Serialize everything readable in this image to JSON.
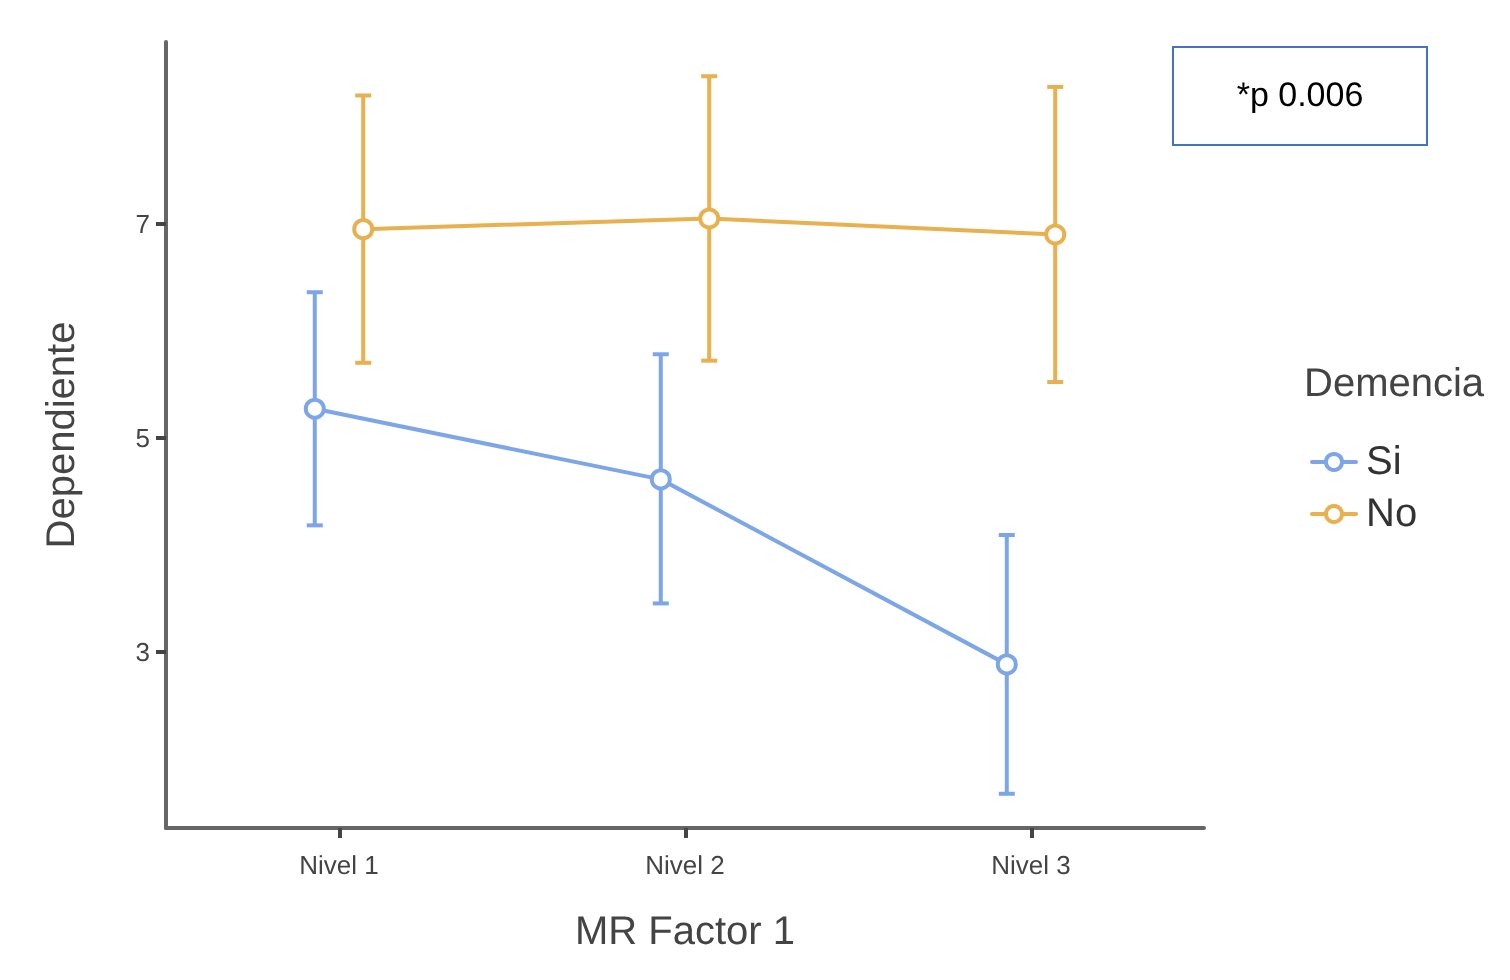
{
  "chart_data": {
    "type": "line",
    "xlabel": "MR Factor 1",
    "ylabel": "Dependiente",
    "legend_title": "Demencia",
    "categories": [
      "Nivel 1",
      "Nivel 2",
      "Nivel 3"
    ],
    "series": [
      {
        "name": "Si",
        "color": "#7ca6e8",
        "values": [
          5.27,
          4.61,
          2.88
        ],
        "errors": [
          [
            4.18,
            6.36
          ],
          [
            3.45,
            5.78
          ],
          [
            1.67,
            4.09
          ]
        ]
      },
      {
        "name": "No",
        "color": "#e8b04f",
        "values": [
          6.95,
          7.05,
          6.9
        ],
        "errors": [
          [
            5.7,
            8.2
          ],
          [
            5.72,
            8.38
          ],
          [
            5.52,
            8.28
          ]
        ]
      }
    ],
    "ylim": [
      1.35,
      8.7
    ],
    "yticks": [
      3,
      5,
      7
    ],
    "grid": false,
    "legend": "right",
    "marker": "circle",
    "line_style": "solid",
    "annotations": [
      "*p 0.006"
    ]
  }
}
